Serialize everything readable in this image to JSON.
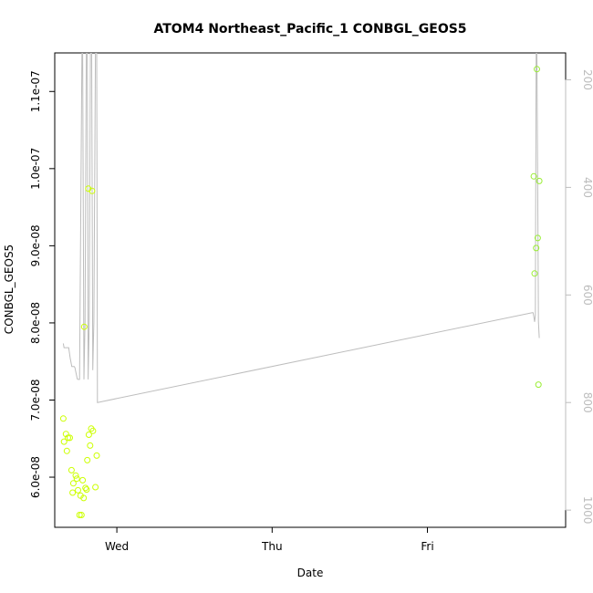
{
  "chart_data": {
    "type": "scatter",
    "title": "ATOM4 Northeast_Pacific_1 CONBGL_GEOS5",
    "xlabel": "Date",
    "ylabel": "CONBGL_GEOS5",
    "x_ticks": [
      {
        "day": 1.0,
        "label": "Wed"
      },
      {
        "day": 2.0,
        "label": "Thu"
      },
      {
        "day": 3.0,
        "label": "Fri"
      }
    ],
    "xlim": [
      0.6,
      3.89
    ],
    "y_ticks": [
      {
        "value": 6e-08,
        "label": "6.0e-08"
      },
      {
        "value": 7e-08,
        "label": "7.0e-08"
      },
      {
        "value": 8e-08,
        "label": "8.0e-08"
      },
      {
        "value": 9e-08,
        "label": "9.0e-08"
      },
      {
        "value": 1e-07,
        "label": "1.0e-07"
      },
      {
        "value": 1.1e-07,
        "label": "1.1e-07"
      }
    ],
    "ylim": [
      5.35e-08,
      1.15e-07
    ],
    "y2_ticks": [
      {
        "value": 200,
        "label": "200"
      },
      {
        "value": 400,
        "label": "400"
      },
      {
        "value": 600,
        "label": "600"
      },
      {
        "value": 800,
        "label": "800"
      },
      {
        "value": 1000,
        "label": "1000"
      }
    ],
    "y2lim": [
      1032,
      150
    ],
    "y2_reversed": true,
    "colors": {
      "points_early": "#ccff00",
      "points_late": "#99ee33",
      "pressure_line": "#bdbdbd",
      "axis": "#000000"
    },
    "points": [
      {
        "x": 0.655,
        "y": 6.76e-08
      },
      {
        "x": 0.66,
        "y": 6.46e-08
      },
      {
        "x": 0.672,
        "y": 6.56e-08
      },
      {
        "x": 0.678,
        "y": 6.34e-08
      },
      {
        "x": 0.685,
        "y": 6.51e-08
      },
      {
        "x": 0.697,
        "y": 6.51e-08
      },
      {
        "x": 0.708,
        "y": 6.09e-08
      },
      {
        "x": 0.715,
        "y": 5.8e-08
      },
      {
        "x": 0.72,
        "y": 5.92e-08
      },
      {
        "x": 0.735,
        "y": 6.02e-08
      },
      {
        "x": 0.742,
        "y": 5.98e-08
      },
      {
        "x": 0.75,
        "y": 5.83e-08
      },
      {
        "x": 0.76,
        "y": 5.51e-08
      },
      {
        "x": 0.766,
        "y": 5.76e-08
      },
      {
        "x": 0.772,
        "y": 5.51e-08
      },
      {
        "x": 0.78,
        "y": 5.96e-08
      },
      {
        "x": 0.786,
        "y": 5.73e-08
      },
      {
        "x": 0.79,
        "y": 7.95e-08
      },
      {
        "x": 0.798,
        "y": 5.86e-08
      },
      {
        "x": 0.805,
        "y": 5.84e-08
      },
      {
        "x": 0.81,
        "y": 6.22e-08
      },
      {
        "x": 0.816,
        "y": 9.74e-08
      },
      {
        "x": 0.82,
        "y": 6.55e-08
      },
      {
        "x": 0.828,
        "y": 6.41e-08
      },
      {
        "x": 0.835,
        "y": 6.63e-08
      },
      {
        "x": 0.84,
        "y": 9.71e-08
      },
      {
        "x": 0.846,
        "y": 6.6e-08
      },
      {
        "x": 0.862,
        "y": 5.87e-08
      },
      {
        "x": 0.87,
        "y": 6.28e-08
      },
      {
        "x": 3.685,
        "y": 9.9e-08
      },
      {
        "x": 3.69,
        "y": 8.64e-08
      },
      {
        "x": 3.7,
        "y": 8.97e-08
      },
      {
        "x": 3.705,
        "y": 1.129e-07
      },
      {
        "x": 3.71,
        "y": 9.1e-08
      },
      {
        "x": 3.715,
        "y": 7.2e-08
      },
      {
        "x": 3.72,
        "y": 9.84e-08
      }
    ],
    "pressure_line": [
      [
        0.655,
        690
      ],
      [
        0.66,
        698
      ],
      [
        0.675,
        698
      ],
      [
        0.69,
        698
      ],
      [
        0.7,
        718
      ],
      [
        0.71,
        733
      ],
      [
        0.725,
        733
      ],
      [
        0.73,
        735
      ],
      [
        0.745,
        756
      ],
      [
        0.75,
        757
      ],
      [
        0.76,
        757
      ],
      [
        0.775,
        150
      ],
      [
        0.78,
        150
      ],
      [
        0.788,
        757
      ],
      [
        0.795,
        650
      ],
      [
        0.803,
        150
      ],
      [
        0.81,
        150
      ],
      [
        0.815,
        757
      ],
      [
        0.822,
        650
      ],
      [
        0.83,
        150
      ],
      [
        0.838,
        150
      ],
      [
        0.845,
        740
      ],
      [
        0.852,
        650
      ],
      [
        0.862,
        150
      ],
      [
        0.87,
        150
      ],
      [
        0.875,
        800
      ],
      [
        3.675,
        633
      ],
      [
        3.68,
        633
      ],
      [
        3.685,
        640
      ],
      [
        3.69,
        650
      ],
      [
        3.695,
        638
      ],
      [
        3.7,
        150
      ],
      [
        3.705,
        150
      ],
      [
        3.71,
        400
      ],
      [
        3.715,
        650
      ],
      [
        3.72,
        680
      ]
    ]
  }
}
